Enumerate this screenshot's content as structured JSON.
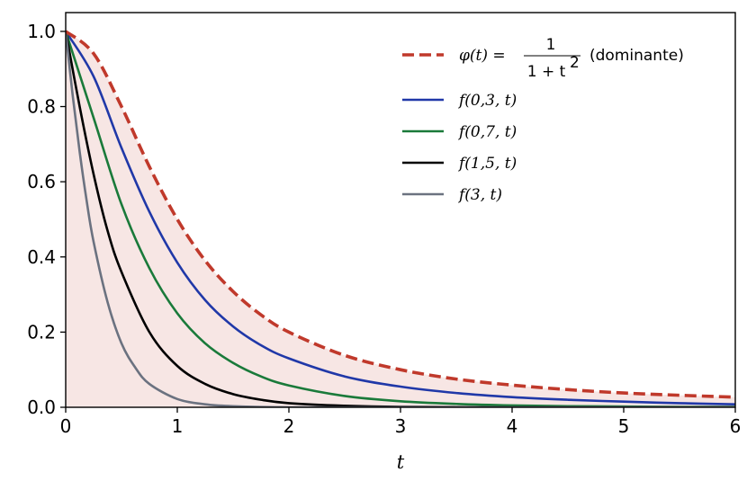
{
  "chart_data": {
    "type": "line",
    "title": "",
    "xlabel": "t",
    "ylabel": "",
    "xlim": [
      0,
      6
    ],
    "ylim": [
      0,
      1.05
    ],
    "x_ticks": [
      "0",
      "1",
      "2",
      "3",
      "4",
      "5",
      "6"
    ],
    "y_ticks": [
      "0.0",
      "0.2",
      "0.4",
      "0.6",
      "0.8",
      "1.0"
    ],
    "grid": false,
    "legend_position": "top-right",
    "fill_under_dominant": true,
    "fill_color": "#f7e6e4",
    "series": [
      {
        "name": "φ(t) = 1/(1+t²) (dominante)",
        "legend": {
          "lhs": "φ(t) = ",
          "numerator": "1",
          "denominator": "1 + t",
          "exponent": "2",
          "suffix": "(dominante)"
        },
        "color": "#c0392b",
        "dashed": true,
        "x": [
          0,
          0.25,
          0.5,
          0.75,
          1,
          1.25,
          1.5,
          1.75,
          2,
          2.5,
          3,
          3.5,
          4,
          4.5,
          5,
          5.5,
          6
        ],
        "y": [
          1.0,
          0.941,
          0.8,
          0.64,
          0.5,
          0.39,
          0.308,
          0.246,
          0.2,
          0.138,
          0.1,
          0.075,
          0.059,
          0.047,
          0.038,
          0.032,
          0.027
        ]
      },
      {
        "name": "f(0,3, t)",
        "color": "#2038a8",
        "dashed": false,
        "x": [
          0,
          0.25,
          0.5,
          0.75,
          1,
          1.25,
          1.5,
          1.75,
          2,
          2.5,
          3,
          3.5,
          4,
          4.5,
          5,
          5.5,
          6
        ],
        "y": [
          1.0,
          0.88,
          0.69,
          0.52,
          0.385,
          0.285,
          0.215,
          0.165,
          0.13,
          0.082,
          0.055,
          0.038,
          0.027,
          0.02,
          0.015,
          0.011,
          0.008
        ]
      },
      {
        "name": "f(0,7, t)",
        "color": "#1a7a3a",
        "dashed": false,
        "x": [
          0,
          0.25,
          0.5,
          0.75,
          1,
          1.25,
          1.5,
          1.75,
          2,
          2.5,
          3,
          3.5,
          4,
          4.5,
          5,
          5.5,
          6
        ],
        "y": [
          1.0,
          0.77,
          0.54,
          0.37,
          0.25,
          0.17,
          0.118,
          0.082,
          0.058,
          0.03,
          0.016,
          0.009,
          0.005,
          0.003,
          0.002,
          0.001,
          0.001
        ]
      },
      {
        "name": "f(1,5, t)",
        "color": "#000000",
        "dashed": false,
        "x": [
          0,
          0.125,
          0.25,
          0.375,
          0.5,
          0.75,
          1,
          1.25,
          1.5,
          1.75,
          2,
          2.5,
          3,
          4,
          5,
          6
        ],
        "y": [
          1.0,
          0.8,
          0.62,
          0.47,
          0.36,
          0.2,
          0.11,
          0.062,
          0.035,
          0.02,
          0.011,
          0.004,
          0.001,
          0.0,
          0.0,
          0.0
        ]
      },
      {
        "name": "f(3, t)",
        "color": "#6b7280",
        "dashed": false,
        "x": [
          0,
          0.0625,
          0.125,
          0.1875,
          0.25,
          0.375,
          0.5,
          0.625,
          0.75,
          1,
          1.25,
          1.5,
          2,
          3,
          4,
          6
        ],
        "y": [
          1.0,
          0.83,
          0.68,
          0.55,
          0.44,
          0.28,
          0.17,
          0.105,
          0.062,
          0.022,
          0.008,
          0.003,
          0.0,
          0.0,
          0.0,
          0.0
        ]
      }
    ]
  }
}
